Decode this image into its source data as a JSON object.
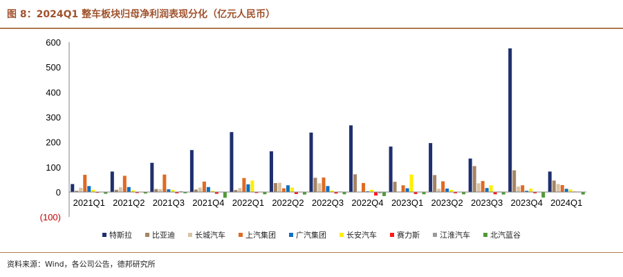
{
  "title": "图 8：2024Q1 整车板块归母净利润表现分化（亿元人民币）",
  "source": "资料来源：Wind，各公司公告，德邦研究所",
  "colors": {
    "title": "#a0522d",
    "rule": "#b07a4d",
    "negative_label": "#c00000"
  },
  "chart_data": {
    "type": "bar",
    "title": "",
    "xlabel": "",
    "ylabel": "",
    "ylim": [
      -100,
      600
    ],
    "yticks": [
      -100,
      0,
      100,
      200,
      300,
      400,
      500,
      600
    ],
    "ytick_labels": [
      "(100)",
      "0",
      "100",
      "200",
      "300",
      "400",
      "500",
      "600"
    ],
    "grid": false,
    "legend_position": "bottom",
    "categories": [
      "2021Q1",
      "2021Q2",
      "2021Q3",
      "2021Q4",
      "2022Q1",
      "2022Q2",
      "2022Q3",
      "2022Q4",
      "2023Q1",
      "2023Q2",
      "2023Q3",
      "2023Q4",
      "2024Q1"
    ],
    "series": [
      {
        "name": "特斯拉",
        "color": "#1f2f6e",
        "values": [
          32,
          82,
          117,
          168,
          240,
          163,
          238,
          267,
          182,
          196,
          134,
          575,
          82
        ]
      },
      {
        "name": "比亚迪",
        "color": "#a58464",
        "values": [
          5,
          9,
          12,
          10,
          8,
          36,
          57,
          71,
          41,
          68,
          104,
          87,
          46
        ]
      },
      {
        "name": "长城汽车",
        "color": "#d8c3a5",
        "values": [
          17,
          19,
          12,
          18,
          16,
          37,
          35,
          1,
          2,
          13,
          35,
          22,
          32
        ]
      },
      {
        "name": "上汽集团",
        "color": "#e06a22",
        "values": [
          69,
          65,
          70,
          42,
          56,
          15,
          58,
          36,
          27,
          43,
          44,
          27,
          28
        ]
      },
      {
        "name": "广汽集团",
        "color": "#0b6fc4",
        "values": [
          24,
          20,
          11,
          20,
          31,
          27,
          24,
          3,
          15,
          14,
          16,
          5,
          13
        ]
      },
      {
        "name": "长安汽车",
        "color": "#ffee00",
        "values": [
          9,
          7,
          9,
          5,
          46,
          18,
          6,
          9,
          70,
          9,
          27,
          14,
          10
        ]
      },
      {
        "name": "赛力斯",
        "color": "#ff1a1a",
        "values": [
          -3,
          -4,
          -5,
          -7,
          -4,
          -8,
          -6,
          -14,
          -8,
          -5,
          -9,
          -5,
          2
        ]
      },
      {
        "name": "江淮汽车",
        "color": "#9a9a9a",
        "values": [
          1,
          1,
          3,
          1,
          1,
          0,
          2,
          -5,
          1,
          0,
          2,
          1,
          2
        ]
      },
      {
        "name": "北汽蓝谷",
        "color": "#4f9a36",
        "values": [
          -7,
          -6,
          -5,
          -23,
          -9,
          -10,
          -9,
          -16,
          -9,
          -9,
          -10,
          -22,
          -10
        ]
      }
    ]
  }
}
